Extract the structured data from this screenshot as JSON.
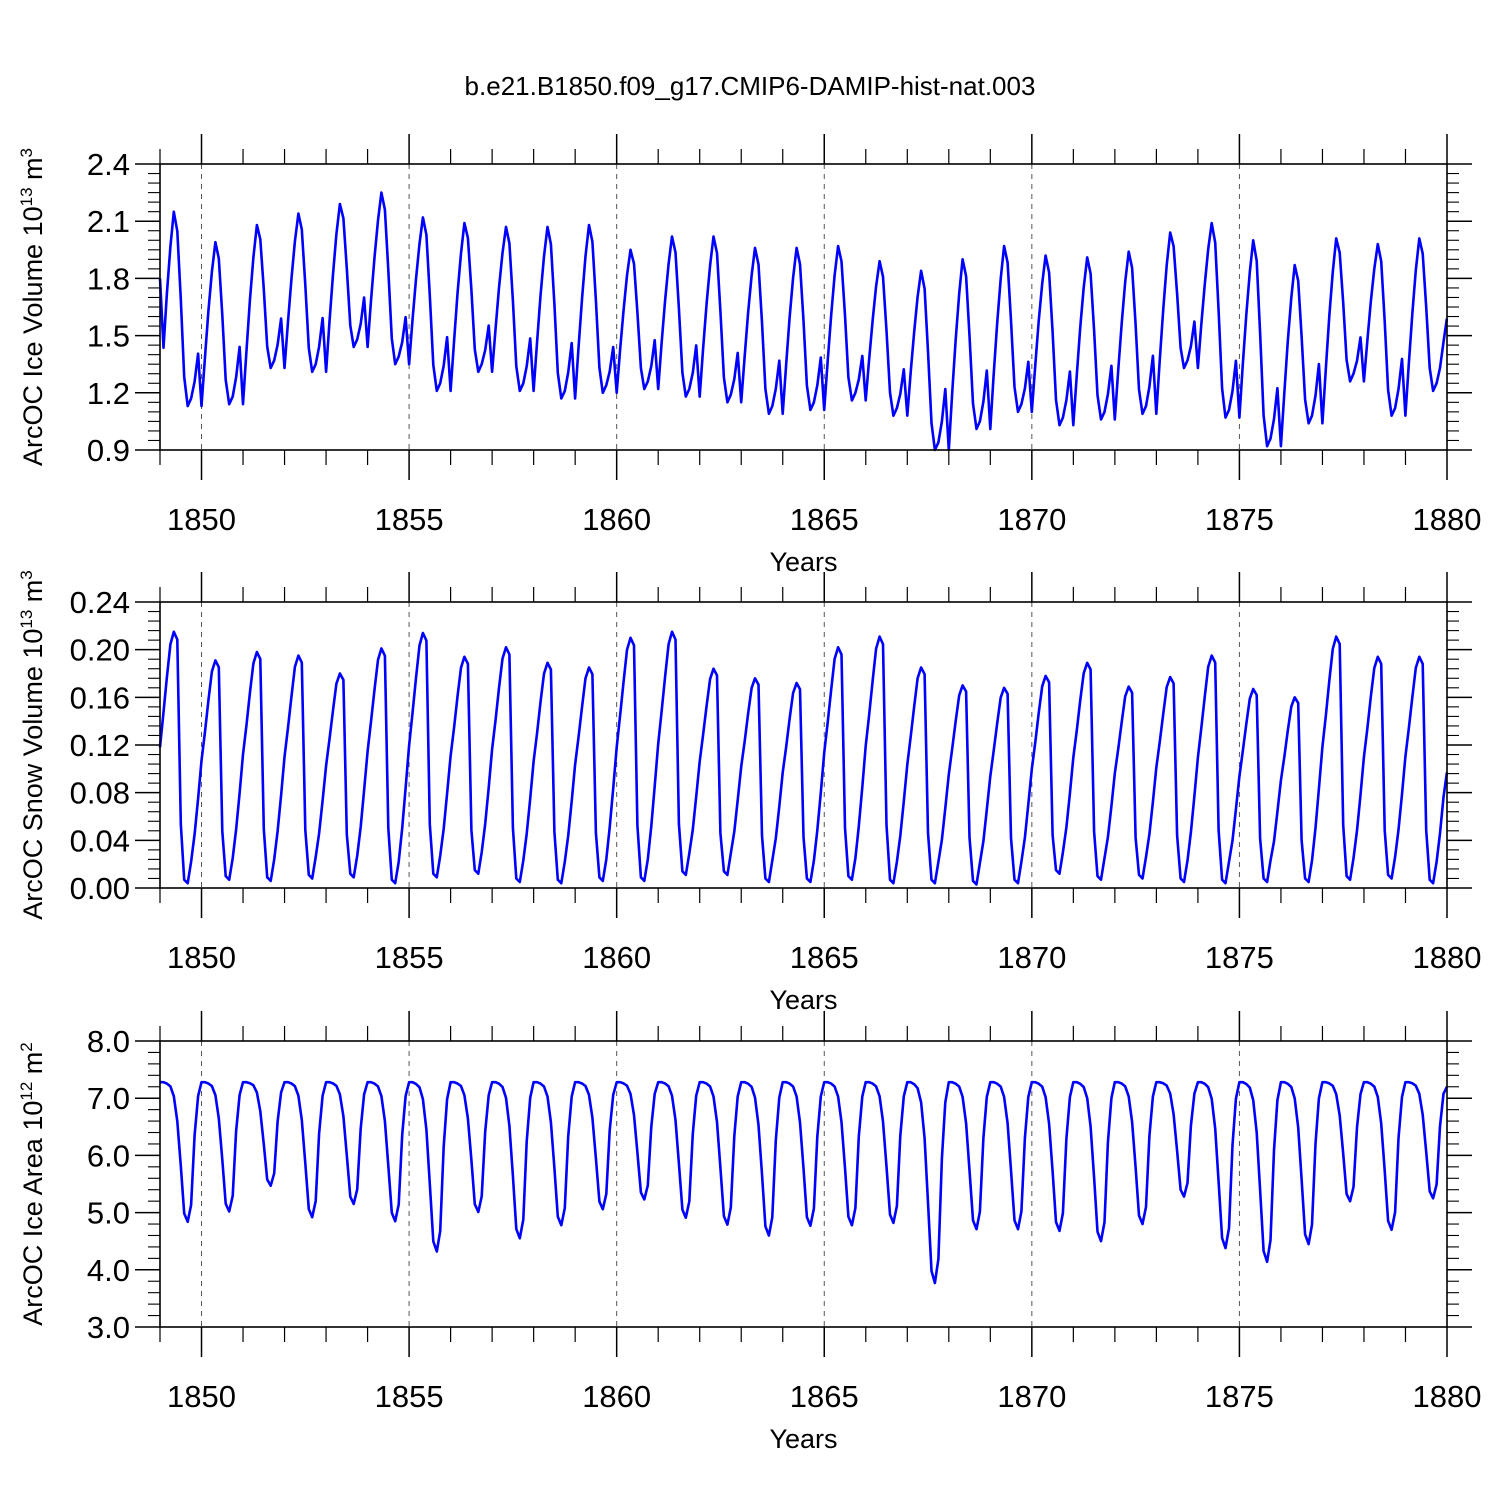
{
  "title": "b.e21.B1850.f09_g17.CMIP6-DAMIP-hist-nat.003",
  "colors": {
    "line": "#0000ff",
    "axis": "#000000",
    "grid": "#555555"
  },
  "chart_data": [
    {
      "type": "line",
      "name": "ice-volume",
      "ylabel": {
        "text": "ArcOC Ice Volume 10",
        "exp": "13",
        "unit": " m",
        "unit_exp": "3"
      },
      "xlabel": "Years",
      "xlim": [
        1849.0,
        1880.0
      ],
      "ylim": [
        0.9,
        2.4
      ],
      "xticks": [
        1850,
        1855,
        1860,
        1865,
        1870,
        1875,
        1880
      ],
      "yticks": [
        0.9,
        1.2,
        1.5,
        1.8,
        2.1,
        2.4
      ],
      "ytick_labels": [
        "0.9",
        "1.2",
        "1.5",
        "1.8",
        "2.1",
        "2.4"
      ],
      "yminor_step": 0.05,
      "start": 1849.0,
      "step": 0.08333,
      "year_max": [
        2.15,
        1.99,
        2.08,
        2.14,
        2.19,
        2.25,
        2.12,
        2.09,
        2.07,
        2.07,
        2.08,
        1.95,
        2.02,
        2.02,
        1.96,
        1.96,
        1.97,
        1.89,
        1.84,
        1.9,
        1.97,
        1.92,
        1.91,
        1.94,
        2.04,
        2.09,
        2.0,
        1.87,
        2.01,
        1.98,
        2.01
      ],
      "year_min": [
        1.13,
        1.14,
        1.33,
        1.31,
        1.44,
        1.35,
        1.21,
        1.31,
        1.21,
        1.17,
        1.2,
        1.22,
        1.18,
        1.15,
        1.09,
        1.11,
        1.16,
        1.08,
        0.9,
        1.01,
        1.1,
        1.03,
        1.06,
        1.09,
        1.33,
        1.07,
        0.92,
        1.04,
        1.26,
        1.08,
        1.21
      ],
      "end_value": 1.59
    },
    {
      "type": "line",
      "name": "snow-volume",
      "ylabel": {
        "text": "ArcOC Snow Volume 10",
        "exp": "13",
        "unit": " m",
        "unit_exp": "3"
      },
      "xlabel": "Years",
      "xlim": [
        1849.0,
        1880.0
      ],
      "ylim": [
        0.0,
        0.24
      ],
      "xticks": [
        1850,
        1855,
        1860,
        1865,
        1870,
        1875,
        1880
      ],
      "yticks": [
        0.0,
        0.04,
        0.08,
        0.12,
        0.16,
        0.2,
        0.24
      ],
      "ytick_labels": [
        "0.00",
        "0.04",
        "0.08",
        "0.12",
        "0.16",
        "0.20",
        "0.24"
      ],
      "yminor_step": 0.008,
      "start": 1849.0,
      "step": 0.08333,
      "year_max": [
        0.215,
        0.191,
        0.198,
        0.195,
        0.18,
        0.201,
        0.214,
        0.194,
        0.202,
        0.189,
        0.185,
        0.21,
        0.215,
        0.184,
        0.176,
        0.172,
        0.202,
        0.211,
        0.185,
        0.17,
        0.168,
        0.178,
        0.189,
        0.169,
        0.177,
        0.195,
        0.167,
        0.16,
        0.211,
        0.194,
        0.194
      ],
      "year_min": [
        0.004,
        0.007,
        0.006,
        0.008,
        0.009,
        0.004,
        0.009,
        0.012,
        0.005,
        0.004,
        0.006,
        0.006,
        0.011,
        0.011,
        0.005,
        0.005,
        0.007,
        0.004,
        0.004,
        0.003,
        0.004,
        0.012,
        0.007,
        0.008,
        0.005,
        0.004,
        0.005,
        0.005,
        0.007,
        0.008,
        0.004
      ],
      "end_value": 0.097
    },
    {
      "type": "line",
      "name": "ice-area",
      "ylabel": {
        "text": "ArcOC Ice Area 10",
        "exp": "12",
        "unit": " m",
        "unit_exp": "2"
      },
      "xlabel": "Years",
      "xlim": [
        1849.0,
        1880.0
      ],
      "ylim": [
        3.0,
        8.0
      ],
      "xticks": [
        1850,
        1855,
        1860,
        1865,
        1870,
        1875,
        1880
      ],
      "yticks": [
        3.0,
        4.0,
        5.0,
        6.0,
        7.0,
        8.0
      ],
      "ytick_labels": [
        "3.0",
        "4.0",
        "5.0",
        "6.0",
        "7.0",
        "8.0"
      ],
      "yminor_step": 0.2,
      "start": 1849.0,
      "step": 0.08333,
      "year_max": [
        7.28,
        7.28,
        7.28,
        7.28,
        7.28,
        7.28,
        7.28,
        7.28,
        7.28,
        7.28,
        7.28,
        7.28,
        7.28,
        7.28,
        7.28,
        7.28,
        7.28,
        7.28,
        7.28,
        7.28,
        7.28,
        7.28,
        7.28,
        7.28,
        7.28,
        7.28,
        7.28,
        7.28,
        7.28,
        7.28,
        7.28
      ],
      "year_min": [
        4.84,
        5.02,
        5.47,
        4.92,
        5.15,
        4.85,
        4.32,
        5.01,
        4.55,
        4.78,
        5.06,
        5.23,
        4.91,
        4.79,
        4.6,
        4.77,
        4.78,
        4.82,
        3.77,
        4.71,
        4.71,
        4.68,
        4.5,
        4.8,
        5.28,
        4.38,
        4.14,
        4.45,
        5.2,
        4.7,
        5.25
      ],
      "end_value": 7.2
    }
  ]
}
